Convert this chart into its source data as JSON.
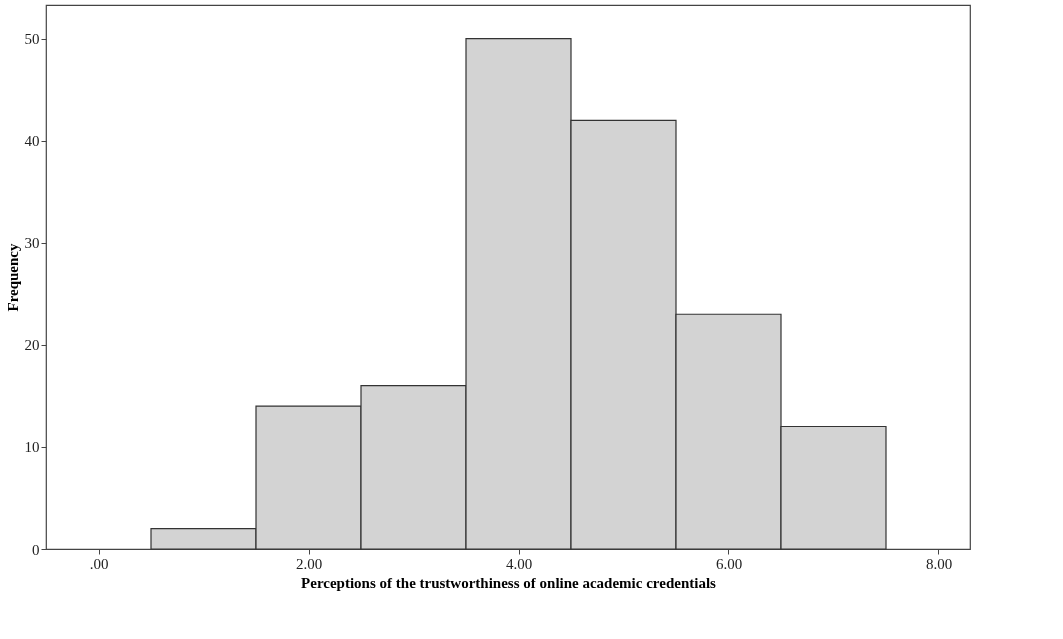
{
  "chart_data": {
    "type": "histogram",
    "xlabel": "Perceptions of the trustworthiness of online academic credentials",
    "ylabel": "Frequency",
    "bins": [
      0.5,
      1.5,
      2.5,
      3.5,
      4.5,
      5.5,
      6.5,
      7.5
    ],
    "values": [
      2,
      14,
      16,
      50,
      42,
      23,
      12
    ],
    "color": "#d3d3d3",
    "xlim": [
      -0.5,
      8.3
    ],
    "ylim": [
      0,
      53.3
    ],
    "xticks": [
      {
        "value": 0,
        "label": ".00"
      },
      {
        "value": 2,
        "label": "2.00"
      },
      {
        "value": 4,
        "label": "4.00"
      },
      {
        "value": 6,
        "label": "6.00"
      },
      {
        "value": 8,
        "label": "8.00"
      }
    ],
    "yticks": [
      0,
      10,
      20,
      30,
      40,
      50
    ],
    "grid": false
  }
}
